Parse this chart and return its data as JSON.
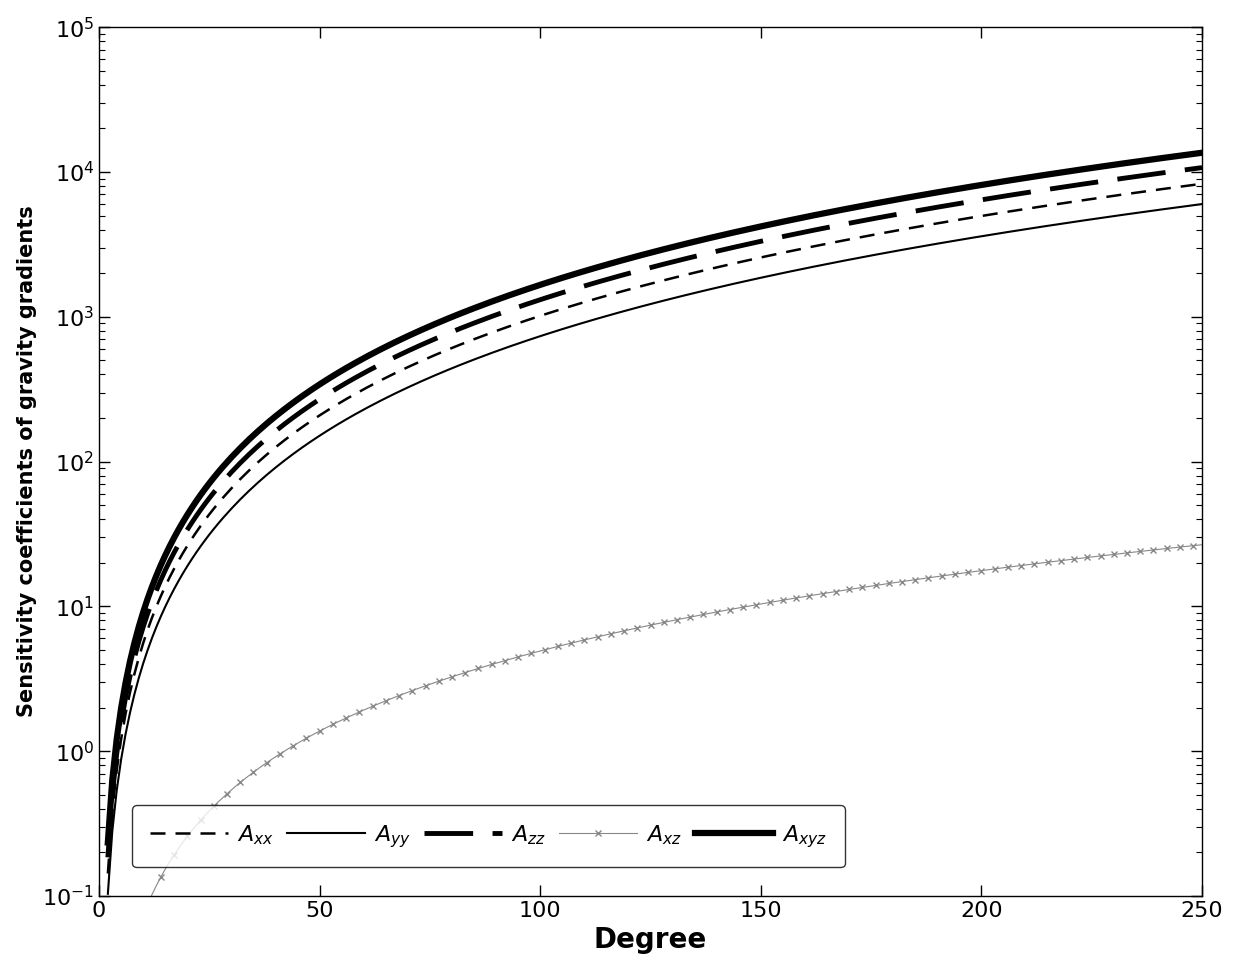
{
  "title": "",
  "xlabel": "Degree",
  "ylabel": "Sensitivity coefficients of gravity gradients",
  "xlim": [
    0,
    250
  ],
  "ylim": [
    0.1,
    100000.0
  ],
  "x_ticks": [
    0,
    50,
    100,
    150,
    200,
    250
  ],
  "background_color": "#ffffff",
  "series": {
    "Axx": {
      "label": "$A_{xx}$",
      "linestyle": "dashed",
      "linewidth": 1.8,
      "color": "#000000",
      "dashes": [
        6,
        4
      ],
      "zorder": 3
    },
    "Ayy": {
      "label": "$A_{yy}$",
      "linestyle": "solid",
      "linewidth": 1.5,
      "color": "#000000",
      "zorder": 2
    },
    "Azz": {
      "label": "$A_{zz}$",
      "linestyle": "dashed",
      "linewidth": 3.5,
      "color": "#000000",
      "dashes": [
        10,
        4
      ],
      "zorder": 4
    },
    "Axz": {
      "label": "$A_{xz}$",
      "linestyle": "solid",
      "linewidth": 0.8,
      "color": "#888888",
      "marker": "x",
      "markersize": 4,
      "markevery": 3,
      "zorder": 1
    },
    "Axyz": {
      "label": "$A_{xyz}$",
      "linestyle": "solid",
      "linewidth": 4.5,
      "color": "#000000",
      "zorder": 5
    }
  }
}
